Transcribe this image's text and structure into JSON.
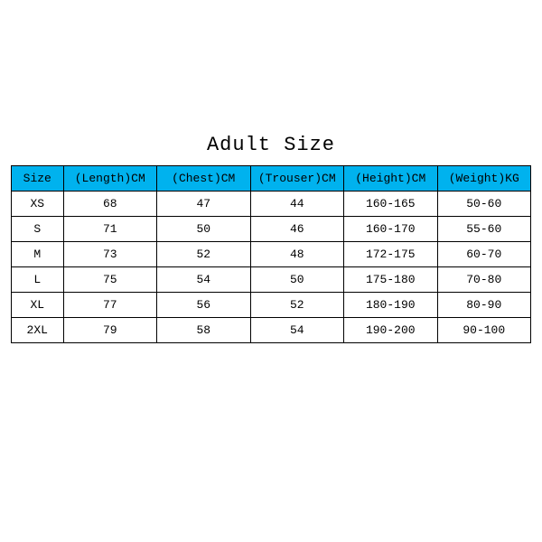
{
  "title": "Adult Size",
  "table": {
    "type": "table",
    "header_bg": "#00b2ee",
    "border_color": "#000000",
    "background_color": "#ffffff",
    "font_family": "Courier New",
    "title_fontsize": 22,
    "cell_fontsize": 13,
    "columns": [
      {
        "label": "Size",
        "width": "10%"
      },
      {
        "label": "(Length)CM",
        "width": "18%"
      },
      {
        "label": "(Chest)CM",
        "width": "18%"
      },
      {
        "label": "(Trouser)CM",
        "width": "18%"
      },
      {
        "label": "(Height)CM",
        "width": "18%"
      },
      {
        "label": "(Weight)KG",
        "width": "18%"
      }
    ],
    "rows": [
      [
        "XS",
        "68",
        "47",
        "44",
        "160-165",
        "50-60"
      ],
      [
        "S",
        "71",
        "50",
        "46",
        "160-170",
        "55-60"
      ],
      [
        "M",
        "73",
        "52",
        "48",
        "172-175",
        "60-70"
      ],
      [
        "L",
        "75",
        "54",
        "50",
        "175-180",
        "70-80"
      ],
      [
        "XL",
        "77",
        "56",
        "52",
        "180-190",
        "80-90"
      ],
      [
        "2XL",
        "79",
        "58",
        "54",
        "190-200",
        "90-100"
      ]
    ]
  }
}
